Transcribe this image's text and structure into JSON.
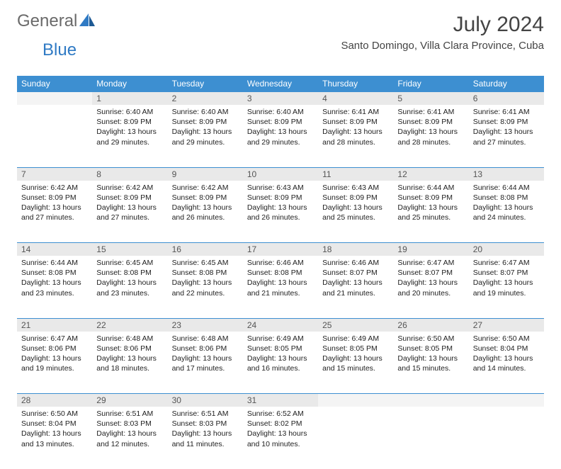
{
  "logo": {
    "text_gray": "General",
    "text_blue": "Blue"
  },
  "title": "July 2024",
  "location": "Santo Domingo, Villa Clara Province, Cuba",
  "day_headers": [
    "Sunday",
    "Monday",
    "Tuesday",
    "Wednesday",
    "Thursday",
    "Friday",
    "Saturday"
  ],
  "colors": {
    "header_bg": "#3d8fd1",
    "header_text": "#ffffff",
    "daynum_bg": "#e9e9e9",
    "rule": "#3d8fd1",
    "logo_gray": "#6a6a6a",
    "logo_blue": "#2f7ac4"
  },
  "weeks": [
    [
      {
        "n": "",
        "lines": []
      },
      {
        "n": "1",
        "lines": [
          "Sunrise: 6:40 AM",
          "Sunset: 8:09 PM",
          "Daylight: 13 hours and 29 minutes."
        ]
      },
      {
        "n": "2",
        "lines": [
          "Sunrise: 6:40 AM",
          "Sunset: 8:09 PM",
          "Daylight: 13 hours and 29 minutes."
        ]
      },
      {
        "n": "3",
        "lines": [
          "Sunrise: 6:40 AM",
          "Sunset: 8:09 PM",
          "Daylight: 13 hours and 29 minutes."
        ]
      },
      {
        "n": "4",
        "lines": [
          "Sunrise: 6:41 AM",
          "Sunset: 8:09 PM",
          "Daylight: 13 hours and 28 minutes."
        ]
      },
      {
        "n": "5",
        "lines": [
          "Sunrise: 6:41 AM",
          "Sunset: 8:09 PM",
          "Daylight: 13 hours and 28 minutes."
        ]
      },
      {
        "n": "6",
        "lines": [
          "Sunrise: 6:41 AM",
          "Sunset: 8:09 PM",
          "Daylight: 13 hours and 27 minutes."
        ]
      }
    ],
    [
      {
        "n": "7",
        "lines": [
          "Sunrise: 6:42 AM",
          "Sunset: 8:09 PM",
          "Daylight: 13 hours and 27 minutes."
        ]
      },
      {
        "n": "8",
        "lines": [
          "Sunrise: 6:42 AM",
          "Sunset: 8:09 PM",
          "Daylight: 13 hours and 27 minutes."
        ]
      },
      {
        "n": "9",
        "lines": [
          "Sunrise: 6:42 AM",
          "Sunset: 8:09 PM",
          "Daylight: 13 hours and 26 minutes."
        ]
      },
      {
        "n": "10",
        "lines": [
          "Sunrise: 6:43 AM",
          "Sunset: 8:09 PM",
          "Daylight: 13 hours and 26 minutes."
        ]
      },
      {
        "n": "11",
        "lines": [
          "Sunrise: 6:43 AM",
          "Sunset: 8:09 PM",
          "Daylight: 13 hours and 25 minutes."
        ]
      },
      {
        "n": "12",
        "lines": [
          "Sunrise: 6:44 AM",
          "Sunset: 8:09 PM",
          "Daylight: 13 hours and 25 minutes."
        ]
      },
      {
        "n": "13",
        "lines": [
          "Sunrise: 6:44 AM",
          "Sunset: 8:08 PM",
          "Daylight: 13 hours and 24 minutes."
        ]
      }
    ],
    [
      {
        "n": "14",
        "lines": [
          "Sunrise: 6:44 AM",
          "Sunset: 8:08 PM",
          "Daylight: 13 hours and 23 minutes."
        ]
      },
      {
        "n": "15",
        "lines": [
          "Sunrise: 6:45 AM",
          "Sunset: 8:08 PM",
          "Daylight: 13 hours and 23 minutes."
        ]
      },
      {
        "n": "16",
        "lines": [
          "Sunrise: 6:45 AM",
          "Sunset: 8:08 PM",
          "Daylight: 13 hours and 22 minutes."
        ]
      },
      {
        "n": "17",
        "lines": [
          "Sunrise: 6:46 AM",
          "Sunset: 8:08 PM",
          "Daylight: 13 hours and 21 minutes."
        ]
      },
      {
        "n": "18",
        "lines": [
          "Sunrise: 6:46 AM",
          "Sunset: 8:07 PM",
          "Daylight: 13 hours and 21 minutes."
        ]
      },
      {
        "n": "19",
        "lines": [
          "Sunrise: 6:47 AM",
          "Sunset: 8:07 PM",
          "Daylight: 13 hours and 20 minutes."
        ]
      },
      {
        "n": "20",
        "lines": [
          "Sunrise: 6:47 AM",
          "Sunset: 8:07 PM",
          "Daylight: 13 hours and 19 minutes."
        ]
      }
    ],
    [
      {
        "n": "21",
        "lines": [
          "Sunrise: 6:47 AM",
          "Sunset: 8:06 PM",
          "Daylight: 13 hours and 19 minutes."
        ]
      },
      {
        "n": "22",
        "lines": [
          "Sunrise: 6:48 AM",
          "Sunset: 8:06 PM",
          "Daylight: 13 hours and 18 minutes."
        ]
      },
      {
        "n": "23",
        "lines": [
          "Sunrise: 6:48 AM",
          "Sunset: 8:06 PM",
          "Daylight: 13 hours and 17 minutes."
        ]
      },
      {
        "n": "24",
        "lines": [
          "Sunrise: 6:49 AM",
          "Sunset: 8:05 PM",
          "Daylight: 13 hours and 16 minutes."
        ]
      },
      {
        "n": "25",
        "lines": [
          "Sunrise: 6:49 AM",
          "Sunset: 8:05 PM",
          "Daylight: 13 hours and 15 minutes."
        ]
      },
      {
        "n": "26",
        "lines": [
          "Sunrise: 6:50 AM",
          "Sunset: 8:05 PM",
          "Daylight: 13 hours and 15 minutes."
        ]
      },
      {
        "n": "27",
        "lines": [
          "Sunrise: 6:50 AM",
          "Sunset: 8:04 PM",
          "Daylight: 13 hours and 14 minutes."
        ]
      }
    ],
    [
      {
        "n": "28",
        "lines": [
          "Sunrise: 6:50 AM",
          "Sunset: 8:04 PM",
          "Daylight: 13 hours and 13 minutes."
        ]
      },
      {
        "n": "29",
        "lines": [
          "Sunrise: 6:51 AM",
          "Sunset: 8:03 PM",
          "Daylight: 13 hours and 12 minutes."
        ]
      },
      {
        "n": "30",
        "lines": [
          "Sunrise: 6:51 AM",
          "Sunset: 8:03 PM",
          "Daylight: 13 hours and 11 minutes."
        ]
      },
      {
        "n": "31",
        "lines": [
          "Sunrise: 6:52 AM",
          "Sunset: 8:02 PM",
          "Daylight: 13 hours and 10 minutes."
        ]
      },
      {
        "n": "",
        "lines": []
      },
      {
        "n": "",
        "lines": []
      },
      {
        "n": "",
        "lines": []
      }
    ]
  ]
}
